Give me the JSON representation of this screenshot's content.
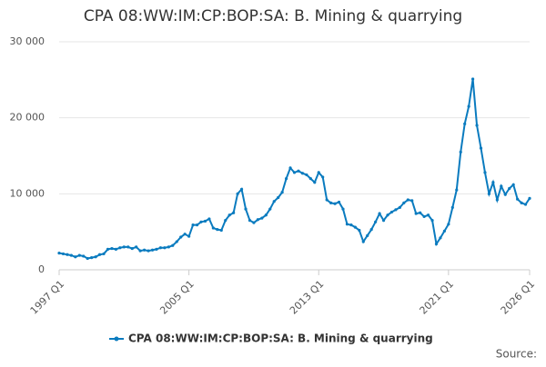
{
  "chart_data": {
    "type": "line",
    "title": "CPA 08:WW:IM:CP:BOP:SA: B. Mining & quarrying",
    "source": "Source:",
    "categories": [
      "1997 Q1",
      null,
      null,
      null,
      null,
      null,
      null,
      null,
      null,
      null,
      null,
      null,
      null,
      null,
      null,
      null,
      null,
      null,
      null,
      null,
      null,
      null,
      null,
      null,
      null,
      null,
      null,
      null,
      null,
      null,
      null,
      null,
      "2005 Q1",
      null,
      null,
      null,
      null,
      null,
      null,
      null,
      null,
      null,
      null,
      null,
      null,
      null,
      null,
      null,
      null,
      null,
      null,
      null,
      null,
      null,
      null,
      null,
      null,
      null,
      null,
      null,
      null,
      null,
      null,
      null,
      "2013 Q1",
      null,
      null,
      null,
      null,
      null,
      null,
      null,
      null,
      null,
      null,
      null,
      null,
      null,
      null,
      null,
      null,
      null,
      null,
      null,
      null,
      null,
      null,
      null,
      null,
      null,
      null,
      null,
      null,
      null,
      null,
      null,
      "2021 Q1",
      null,
      null,
      null,
      null,
      null,
      null,
      null,
      null,
      null,
      null,
      null,
      null,
      null,
      null,
      null,
      null,
      null,
      null,
      null,
      "2026 Q1"
    ],
    "series": [
      {
        "name": "CPA 08:WW:IM:CP:BOP:SA: B. Mining & quarrying",
        "color": "#0a7bbf",
        "values": [
          2200,
          2100,
          2000,
          1900,
          1700,
          1900,
          1800,
          1500,
          1600,
          1700,
          2000,
          2100,
          2700,
          2800,
          2700,
          2900,
          3000,
          3000,
          2800,
          3000,
          2500,
          2600,
          2500,
          2600,
          2700,
          2900,
          2900,
          3000,
          3200,
          3700,
          4300,
          4700,
          4400,
          5900,
          5900,
          6300,
          6400,
          6700,
          5500,
          5300,
          5200,
          6500,
          7200,
          7500,
          10000,
          10600,
          8000,
          6500,
          6200,
          6600,
          6800,
          7200,
          8000,
          9000,
          9500,
          10200,
          12000,
          13400,
          12800,
          13000,
          12700,
          12500,
          12000,
          11500,
          12800,
          12200,
          9200,
          8800,
          8700,
          8900,
          8000,
          6000,
          5900,
          5600,
          5200,
          3700,
          4500,
          5300,
          6300,
          7400,
          6500,
          7200,
          7600,
          7900,
          8200,
          8800,
          9200,
          9100,
          7400,
          7500,
          7000,
          7200,
          6500,
          3400,
          4200,
          5100,
          6000,
          8200,
          10500,
          15500,
          19200,
          21500,
          25100,
          19000,
          16000,
          12800,
          10000,
          11500,
          9200,
          11000,
          9900,
          10700,
          11200,
          9300,
          8800,
          8600,
          9400
        ]
      }
    ],
    "ylim": [
      0,
      30000
    ],
    "yticks": [
      0,
      {
        "value": 10000,
        "label": "10 000"
      },
      {
        "value": 20000,
        "label": "20 000"
      },
      {
        "value": 30000,
        "label": "30 000"
      }
    ],
    "grid": true,
    "legend": "bottom"
  }
}
